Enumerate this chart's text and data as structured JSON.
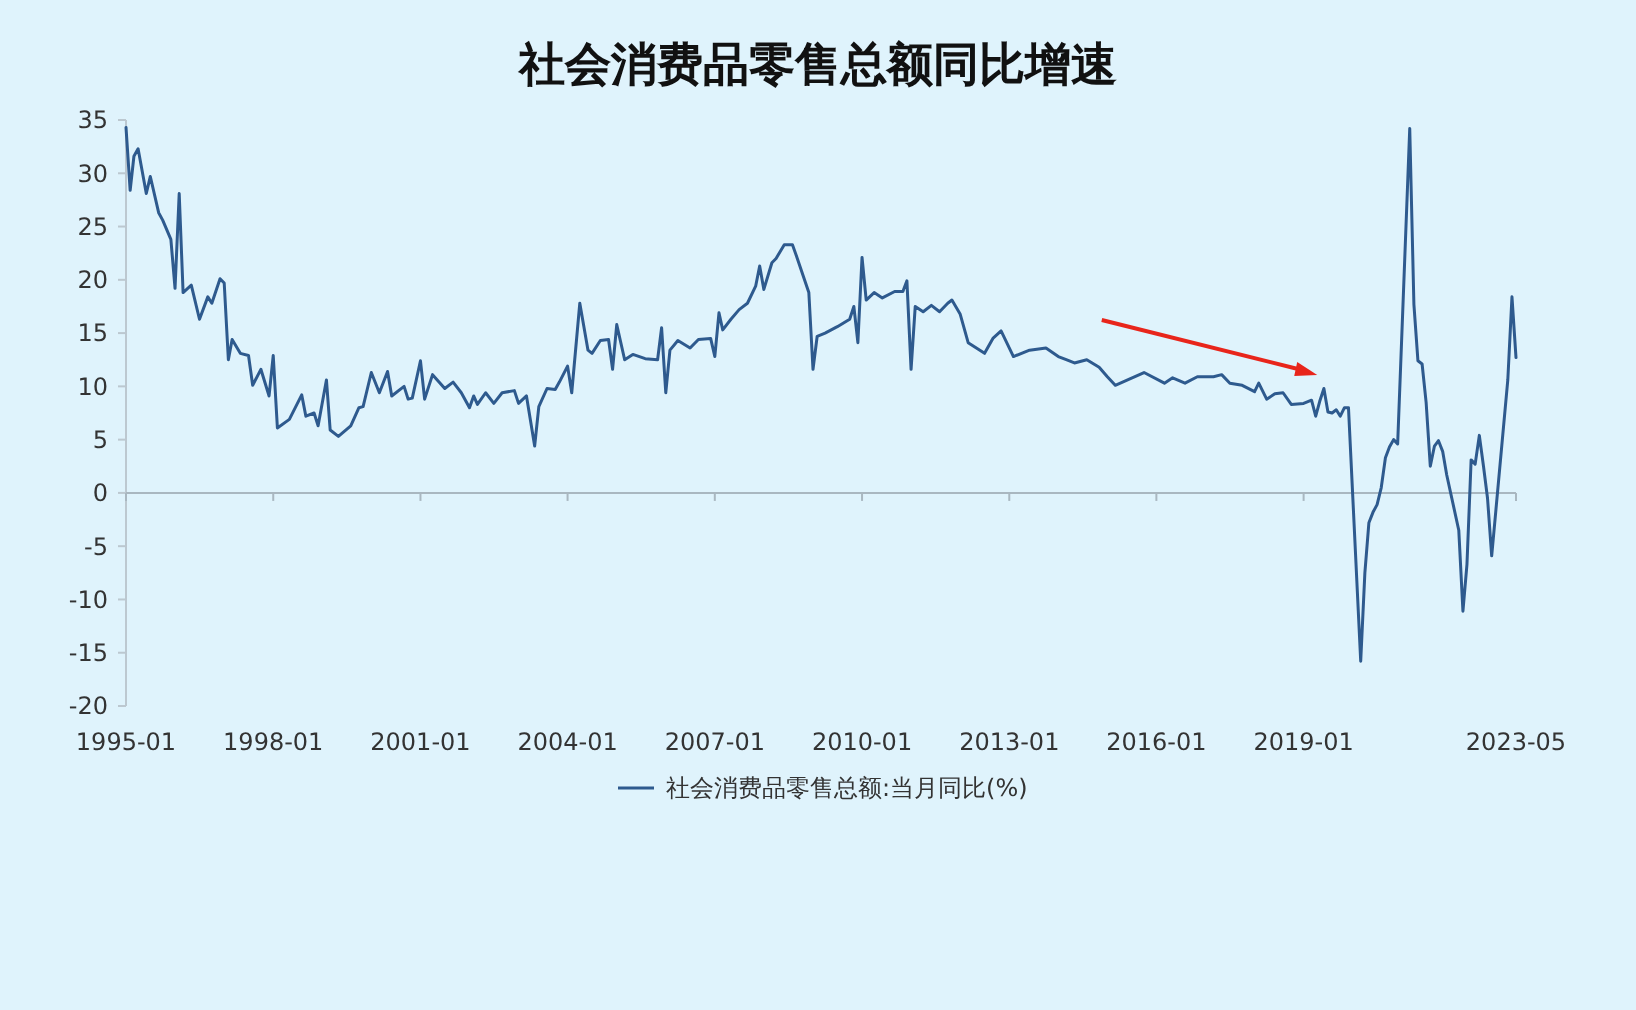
{
  "chart_data": {
    "type": "line",
    "title": "社会消费品零售总额同比增速",
    "xlim": [
      "1995-01",
      "2023-05"
    ],
    "xticks": [
      "1995-01",
      "1998-01",
      "2001-01",
      "2004-01",
      "2007-01",
      "2010-01",
      "2013-01",
      "2016-01",
      "2019-01",
      "2023-05"
    ],
    "ylim": [
      -20,
      35
    ],
    "yticks": [
      -20,
      -15,
      -10,
      -5,
      0,
      5,
      10,
      15,
      20,
      25,
      30,
      35
    ],
    "legend": "bottom",
    "marker": "none",
    "line_style": "solid",
    "x": [
      "1995-01",
      "1995-02",
      "1995-03",
      "1995-04",
      "1995-06",
      "1995-07",
      "1995-09",
      "1995-10",
      "1995-12",
      "1996-01",
      "1996-02",
      "1996-03",
      "1996-05",
      "1996-07",
      "1996-09",
      "1996-10",
      "1996-12",
      "1997-01",
      "1997-02",
      "1997-03",
      "1997-05",
      "1997-07",
      "1997-08",
      "1997-10",
      "1997-12",
      "1998-01",
      "1998-02",
      "1998-05",
      "1998-08",
      "1998-09",
      "1998-11",
      "1998-12",
      "1999-02",
      "1999-03",
      "1999-05",
      "1999-08",
      "1999-10",
      "1999-11",
      "2000-01",
      "2000-03",
      "2000-05",
      "2000-06",
      "2000-09",
      "2000-10",
      "2000-11",
      "2001-01",
      "2001-02",
      "2001-04",
      "2001-07",
      "2001-09",
      "2001-11",
      "2002-01",
      "2002-02",
      "2002-03",
      "2002-05",
      "2002-07",
      "2002-09",
      "2002-12",
      "2003-01",
      "2003-03",
      "2003-05",
      "2003-06",
      "2003-08",
      "2003-10",
      "2003-11",
      "2004-01",
      "2004-02",
      "2004-04",
      "2004-06",
      "2004-07",
      "2004-09",
      "2004-11",
      "2004-12",
      "2005-01",
      "2005-03",
      "2005-05",
      "2005-08",
      "2005-11",
      "2005-12",
      "2006-01",
      "2006-02",
      "2006-04",
      "2006-07",
      "2006-09",
      "2006-12",
      "2007-01",
      "2007-02",
      "2007-03",
      "2007-05",
      "2007-07",
      "2007-09",
      "2007-11",
      "2007-12",
      "2008-01",
      "2008-03",
      "2008-04",
      "2008-06",
      "2008-08",
      "2008-09",
      "2008-12",
      "2009-01",
      "2009-02",
      "2009-04",
      "2009-07",
      "2009-10",
      "2009-11",
      "2009-12",
      "2010-01",
      "2010-02",
      "2010-04",
      "2010-06",
      "2010-09",
      "2010-11",
      "2010-12",
      "2011-01",
      "2011-02",
      "2011-04",
      "2011-06",
      "2011-08",
      "2011-10",
      "2011-11",
      "2012-01",
      "2012-03",
      "2012-07",
      "2012-09",
      "2012-11",
      "2013-02",
      "2013-06",
      "2013-10",
      "2014-01",
      "2014-03",
      "2014-05",
      "2014-08",
      "2014-11",
      "2015-01",
      "2015-03",
      "2015-06",
      "2015-10",
      "2016-03",
      "2016-05",
      "2016-08",
      "2016-11",
      "2017-03",
      "2017-05",
      "2017-07",
      "2017-10",
      "2018-01",
      "2018-02",
      "2018-04",
      "2018-06",
      "2018-08",
      "2018-10",
      "2019-01",
      "2019-03",
      "2019-04",
      "2019-05",
      "2019-06",
      "2019-07",
      "2019-08",
      "2019-09",
      "2019-10",
      "2019-11",
      "2019-12",
      "2020-03",
      "2020-04",
      "2020-05",
      "2020-06",
      "2020-07",
      "2020-08",
      "2020-09",
      "2020-10",
      "2020-11",
      "2020-12",
      "2021-03",
      "2021-04",
      "2021-05",
      "2021-06",
      "2021-07",
      "2021-08",
      "2021-09",
      "2021-10",
      "2021-11",
      "2021-12",
      "2022-03",
      "2022-04",
      "2022-05",
      "2022-06",
      "2022-07",
      "2022-08",
      "2022-09",
      "2022-10",
      "2022-11",
      "2022-12",
      "2023-03",
      "2023-04",
      "2023-05"
    ],
    "series": [
      {
        "name": "社会消费品零售总额:当月同比(%)",
        "color": "#2e5a8e",
        "values": [
          34.3,
          28.4,
          31.6,
          32.3,
          28.1,
          29.7,
          26.3,
          25.6,
          23.8,
          19.2,
          28.1,
          18.8,
          19.5,
          16.3,
          18.4,
          17.8,
          20.1,
          19.7,
          12.5,
          14.4,
          13.1,
          12.9,
          10.1,
          11.6,
          9.1,
          12.9,
          6.1,
          6.9,
          9.2,
          7.2,
          7.5,
          6.3,
          10.6,
          5.9,
          5.3,
          6.3,
          8.0,
          8.1,
          11.3,
          9.4,
          11.4,
          9.1,
          10.0,
          8.8,
          8.9,
          12.4,
          8.8,
          11.1,
          9.8,
          10.4,
          9.4,
          8.0,
          9.1,
          8.3,
          9.4,
          8.4,
          9.4,
          9.6,
          8.4,
          9.1,
          4.4,
          8.1,
          9.8,
          9.7,
          10.4,
          11.9,
          9.4,
          17.8,
          13.4,
          13.1,
          14.3,
          14.4,
          11.6,
          15.8,
          12.5,
          13.0,
          12.6,
          12.5,
          15.5,
          9.4,
          13.4,
          14.3,
          13.6,
          14.4,
          14.5,
          12.8,
          16.9,
          15.3,
          16.3,
          17.2,
          17.8,
          19.4,
          21.3,
          19.1,
          21.6,
          22.0,
          23.3,
          23.3,
          22.2,
          18.8,
          11.6,
          14.7,
          15.0,
          15.6,
          16.3,
          17.5,
          14.1,
          22.1,
          18.1,
          18.8,
          18.3,
          18.9,
          18.9,
          19.9,
          11.6,
          17.5,
          17.0,
          17.6,
          17.0,
          17.8,
          18.1,
          16.8,
          14.1,
          13.1,
          14.5,
          15.2,
          12.8,
          13.4,
          13.6,
          12.8,
          12.5,
          12.2,
          12.5,
          11.8,
          10.9,
          10.1,
          10.6,
          11.3,
          10.3,
          10.8,
          10.3,
          10.9,
          10.9,
          11.1,
          10.3,
          10.1,
          9.5,
          10.3,
          8.8,
          9.3,
          9.4,
          8.3,
          8.4,
          8.7,
          7.2,
          8.6,
          9.8,
          7.6,
          7.5,
          7.8,
          7.2,
          8.0,
          8.0,
          -15.8,
          -7.5,
          -2.8,
          -1.8,
          -1.1,
          0.5,
          3.3,
          4.3,
          5.0,
          4.6,
          34.2,
          17.7,
          12.4,
          12.1,
          8.5,
          2.5,
          4.4,
          4.9,
          3.9,
          1.7,
          -3.5,
          -11.1,
          -6.7,
          3.1,
          2.7,
          5.4,
          2.5,
          -0.5,
          -5.9,
          -1.8,
          10.6,
          18.4,
          12.7
        ]
      }
    ]
  }
}
